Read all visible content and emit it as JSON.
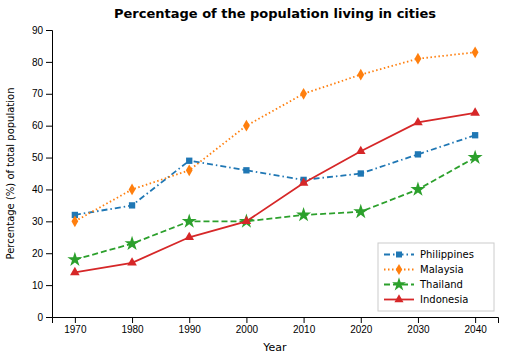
{
  "chart_data": {
    "type": "line",
    "title": "Percentage of the population living in cities",
    "xlabel": "Year",
    "ylabel": "Percentage (%) of total population",
    "x": [
      1970,
      1980,
      1990,
      2000,
      2010,
      2020,
      2030,
      2040
    ],
    "series": [
      {
        "name": "Philippines",
        "values": [
          32,
          35,
          49,
          46,
          43,
          45,
          51,
          57
        ],
        "marker": "square",
        "line_style": "dashdot"
      },
      {
        "name": "Malaysia",
        "values": [
          30,
          40,
          46,
          60,
          70,
          76,
          81,
          83
        ],
        "marker": "diamond",
        "line_style": "dotted"
      },
      {
        "name": "Thailand",
        "values": [
          18,
          23,
          30,
          30,
          32,
          33,
          40,
          50
        ],
        "marker": "star",
        "line_style": "dashed"
      },
      {
        "name": "Indonesia",
        "values": [
          14,
          17,
          25,
          30,
          42,
          52,
          61,
          64
        ],
        "marker": "triangle",
        "line_style": "solid"
      }
    ],
    "xlim": [
      1966,
      2044
    ],
    "xticks": [
      1970,
      1980,
      1990,
      2000,
      2010,
      2020,
      2030,
      2040
    ],
    "ylim": [
      0,
      90
    ],
    "yticks": [
      0,
      10,
      20,
      30,
      40,
      50,
      60,
      70,
      80,
      90
    ],
    "grid": false,
    "legend": "lower right"
  }
}
